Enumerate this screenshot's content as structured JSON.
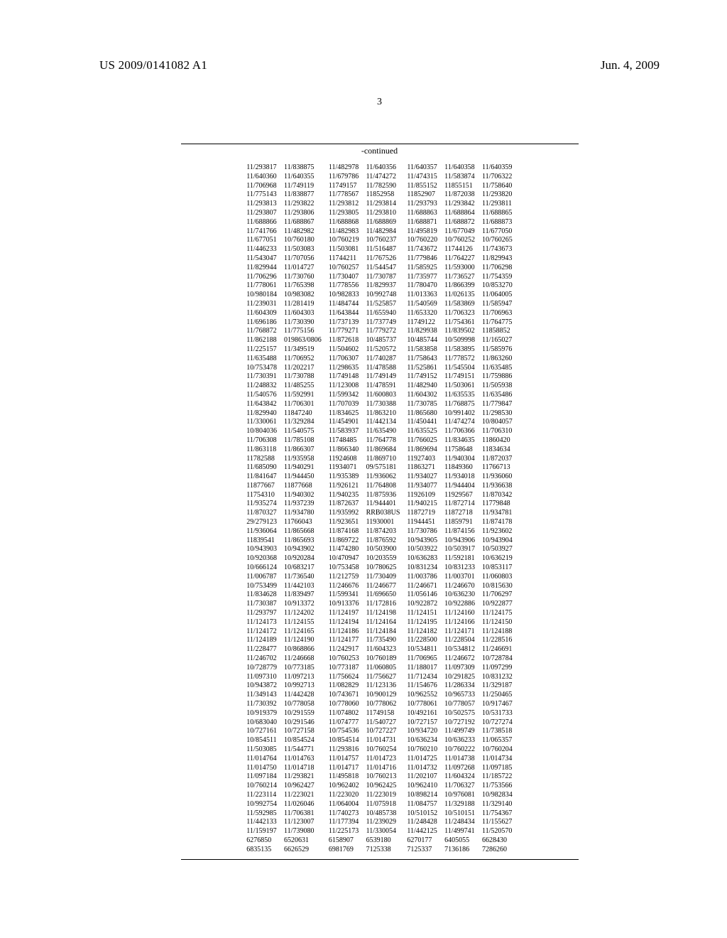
{
  "header": {
    "publication_number": "US 2009/0141082 A1",
    "publication_date": "Jun. 4, 2009"
  },
  "page_number": "3",
  "continued_label": "-continued",
  "table": {
    "columns": 7,
    "rows": [
      [
        "11/293817",
        "11/838875",
        "11/482978",
        "11/640356",
        "11/640357",
        "11/640358",
        "11/640359"
      ],
      [
        "11/640360",
        "11/640355",
        "11/679786",
        "11/474272",
        "11/474315",
        "11/583874",
        "11/706322"
      ],
      [
        "11/706968",
        "11/749119",
        "11749157",
        "11/782590",
        "11/855152",
        "11855151",
        "11/758640"
      ],
      [
        "11/775143",
        "11/838877",
        "11/778567",
        "11852958",
        "11852907",
        "11/872038",
        "11/293820"
      ],
      [
        "11/293813",
        "11/293822",
        "11/293812",
        "11/293814",
        "11/293793",
        "11/293842",
        "11/293811"
      ],
      [
        "11/293807",
        "11/293806",
        "11/293805",
        "11/293810",
        "11/688863",
        "11/688864",
        "11/688865"
      ],
      [
        "11/688866",
        "11/688867",
        "11/688868",
        "11/688869",
        "11/688871",
        "11/688872",
        "11/688873"
      ],
      [
        "11/741766",
        "11/482982",
        "11/482983",
        "11/482984",
        "11/495819",
        "11/677049",
        "11/677050"
      ],
      [
        "11/677051",
        "10/760180",
        "10/760219",
        "10/760237",
        "10/760220",
        "10/760252",
        "10/760265"
      ],
      [
        "11/446233",
        "11/503083",
        "11/503081",
        "11/516487",
        "11/743672",
        "11744126",
        "11/743673"
      ],
      [
        "11/543047",
        "11/707056",
        "11744211",
        "11/767526",
        "11/779846",
        "11/764227",
        "11/829943"
      ],
      [
        "11/829944",
        "11/014727",
        "10/760257",
        "11/544547",
        "11/585925",
        "11/593000",
        "11/706298"
      ],
      [
        "11/706296",
        "11/730760",
        "11/730407",
        "11/730787",
        "11/735977",
        "11/736527",
        "11/754359"
      ],
      [
        "11/778061",
        "11/765398",
        "11/778556",
        "11/829937",
        "11/780470",
        "11/866399",
        "10/853270"
      ],
      [
        "10/980184",
        "10/983082",
        "10/982833",
        "10/992748",
        "11/013363",
        "11/026135",
        "11/064005"
      ],
      [
        "11/239031",
        "11/281419",
        "11/484744",
        "11/525857",
        "11/540569",
        "11/583869",
        "11/585947"
      ],
      [
        "11/604309",
        "11/604303",
        "11/643844",
        "11/655940",
        "11/653320",
        "11/706323",
        "11/706963"
      ],
      [
        "11/696186",
        "11/730390",
        "11/737139",
        "11/737749",
        "11749122",
        "11/754361",
        "11/764775"
      ],
      [
        "11/768872",
        "11/775156",
        "11/779271",
        "11/779272",
        "11/829938",
        "11/839502",
        "11858852"
      ],
      [
        "11/862188",
        "019863/0806",
        "11/872618",
        "10/485737",
        "10/485744",
        "10/509998",
        "11/165027"
      ],
      [
        "11/225157",
        "11/349519",
        "11/504602",
        "11/520572",
        "11/583858",
        "11/583895",
        "11/585976"
      ],
      [
        "11/635488",
        "11/706952",
        "11/706307",
        "11/740287",
        "11/758643",
        "11/778572",
        "11/863260"
      ],
      [
        "10/753478",
        "11/202217",
        "11/298635",
        "11/478588",
        "11/525861",
        "11/545504",
        "11/635485"
      ],
      [
        "11/730391",
        "11/730788",
        "11/749148",
        "11/749149",
        "11/749152",
        "11/749151",
        "11/759886"
      ],
      [
        "11/248832",
        "11/485255",
        "11/123008",
        "11/478591",
        "11/482940",
        "11/503061",
        "11/505938"
      ],
      [
        "11/540576",
        "11/592991",
        "11/599342",
        "11/600803",
        "11/604302",
        "11/635535",
        "11/635486"
      ],
      [
        "11/643842",
        "11/706301",
        "11/707039",
        "11/730388",
        "11/730785",
        "11/768875",
        "11/779847"
      ],
      [
        "11/829940",
        "11847240",
        "11/834625",
        "11/863210",
        "11/865680",
        "10/991402",
        "11/298530"
      ],
      [
        "11/330061",
        "11/329284",
        "11/454901",
        "11/442134",
        "11/450441",
        "11/474274",
        "10/804057"
      ],
      [
        "10/804036",
        "11/540575",
        "11/583937",
        "11/635490",
        "11/635525",
        "11/706366",
        "11/706310"
      ],
      [
        "11/706308",
        "11/785108",
        "11748485",
        "11/764778",
        "11/766025",
        "11/834635",
        "11860420"
      ],
      [
        "11/863118",
        "11/866307",
        "11/866340",
        "11/869684",
        "11/869694",
        "11758648",
        "11834634"
      ],
      [
        "11782588",
        "11/935958",
        "11924608",
        "11/869710",
        "11927403",
        "11/940304",
        "11/872037"
      ],
      [
        "11/685090",
        "11/940291",
        "11934071",
        "09/575181",
        "11863271",
        "11849360",
        "11766713"
      ],
      [
        "11/841647",
        "11/944450",
        "11/935389",
        "11/936062",
        "11/934027",
        "11/934018",
        "11/936060"
      ],
      [
        "11877667",
        "11877668",
        "11/926121",
        "11/764808",
        "11/934077",
        "11/944404",
        "11/936638"
      ],
      [
        "11754310",
        "11/940302",
        "11/940235",
        "11/875936",
        "11926109",
        "11929567",
        "11/870342"
      ],
      [
        "11/935274",
        "11/937239",
        "11/872637",
        "11/944401",
        "11/940215",
        "11/872714",
        "11779848"
      ],
      [
        "11/870327",
        "11/934780",
        "11/935992",
        "RRB038US",
        "11872719",
        "11872718",
        "11/934781"
      ],
      [
        "29/279123",
        "11766043",
        "11/923651",
        "11930001",
        "11944451",
        "11859791",
        "11/874178"
      ],
      [
        "11/936064",
        "11/865668",
        "11/874168",
        "11/874203",
        "11/730786",
        "11/874156",
        "11/923602"
      ],
      [
        "11839541",
        "11/865693",
        "11/869722",
        "11/876592",
        "10/943905",
        "10/943906",
        "10/943904"
      ],
      [
        "10/943903",
        "10/943902",
        "11/474280",
        "10/503900",
        "10/503922",
        "10/503917",
        "10/503927"
      ],
      [
        "10/920368",
        "10/920284",
        "10/470947",
        "10/203559",
        "10/636283",
        "11/592181",
        "10/636219"
      ],
      [
        "10/666124",
        "10/683217",
        "10/753458",
        "10/780625",
        "10/831234",
        "10/831233",
        "10/853117"
      ],
      [
        "11/006787",
        "11/736540",
        "11/212759",
        "11/730409",
        "11/003786",
        "11/003701",
        "11/060803"
      ],
      [
        "10/753499",
        "11/442103",
        "11/246676",
        "11/246677",
        "11/246671",
        "11/246670",
        "10/815630"
      ],
      [
        "11/834628",
        "11/839497",
        "11/599341",
        "11/696650",
        "11/056146",
        "10/636230",
        "11/706297"
      ],
      [
        "11/730387",
        "10/913372",
        "10/913376",
        "11/172816",
        "10/922872",
        "10/922886",
        "10/922877"
      ],
      [
        "11/293797",
        "11/124202",
        "11/124197",
        "11/124198",
        "11/124151",
        "11/124160",
        "11/124175"
      ],
      [
        "11/124173",
        "11/124155",
        "11/124194",
        "11/124164",
        "11/124195",
        "11/124166",
        "11/124150"
      ],
      [
        "11/124172",
        "11/124165",
        "11/124186",
        "11/124184",
        "11/124182",
        "11/124171",
        "11/124188"
      ],
      [
        "11/124189",
        "11/124190",
        "11/124177",
        "11/735490",
        "11/228500",
        "11/228504",
        "11/228516"
      ],
      [
        "11/228477",
        "10/868866",
        "11/242917",
        "11/604323",
        "10/534811",
        "10/534812",
        "11/246691"
      ],
      [
        "11/246702",
        "11/246668",
        "10/760253",
        "10/760189",
        "11/706965",
        "11/246672",
        "10/728784"
      ],
      [
        "10/728779",
        "10/773185",
        "10/773187",
        "11/060805",
        "11/188017",
        "11/097309",
        "11/097299"
      ],
      [
        "11/097310",
        "11/097213",
        "11/756624",
        "11/756627",
        "11/712434",
        "10/291825",
        "10/831232"
      ],
      [
        "10/943872",
        "10/992713",
        "11/082829",
        "11/123136",
        "11/154676",
        "11/286334",
        "11/329187"
      ],
      [
        "11/349143",
        "11/442428",
        "10/743671",
        "10/900129",
        "10/962552",
        "10/965733",
        "11/250465"
      ],
      [
        "11/730392",
        "10/778058",
        "10/778060",
        "10/778062",
        "10/778061",
        "10/778057",
        "10/917467"
      ],
      [
        "10/919379",
        "10/291559",
        "11/074802",
        "11749158",
        "10/492161",
        "10/502575",
        "10/531733"
      ],
      [
        "10/683040",
        "10/291546",
        "11/074777",
        "11/540727",
        "10/727157",
        "10/727192",
        "10/727274"
      ],
      [
        "10/727161",
        "10/727158",
        "10/754536",
        "10/727227",
        "10/934720",
        "11/499749",
        "11/738518"
      ],
      [
        "10/854511",
        "10/854524",
        "10/854514",
        "11/014731",
        "10/636234",
        "10/636233",
        "11/065357"
      ],
      [
        "11/503085",
        "11/544771",
        "11/293816",
        "10/760254",
        "10/760210",
        "10/760222",
        "10/760204"
      ],
      [
        "11/014764",
        "11/014763",
        "11/014757",
        "11/014723",
        "11/014725",
        "11/014738",
        "11/014734"
      ],
      [
        "11/014750",
        "11/014718",
        "11/014717",
        "11/014716",
        "11/014732",
        "11/097268",
        "11/097185"
      ],
      [
        "11/097184",
        "11/293821",
        "11/495818",
        "10/760213",
        "11/202107",
        "11/604324",
        "11/185722"
      ],
      [
        "10/760214",
        "10/962427",
        "10/962402",
        "10/962425",
        "10/962410",
        "11/706327",
        "11/753566"
      ],
      [
        "11/223114",
        "11/223021",
        "11/223020",
        "11/223019",
        "10/898214",
        "10/976081",
        "10/982834"
      ],
      [
        "10/992754",
        "11/026046",
        "11/064004",
        "11/075918",
        "11/084757",
        "11/329188",
        "11/329140"
      ],
      [
        "11/592985",
        "11/706381",
        "11/740273",
        "10/485738",
        "10/510152",
        "10/510151",
        "11/754367"
      ],
      [
        "11/442133",
        "11/123007",
        "11/177394",
        "11/239029",
        "11/248428",
        "11/248434",
        "11/155627"
      ],
      [
        "11/159197",
        "11/739080",
        "11/225173",
        "11/330054",
        "11/442125",
        "11/499741",
        "11/520570"
      ],
      [
        "6276850",
        "6520631",
        "6158907",
        "6539180",
        "6270177",
        "6405055",
        "6628430"
      ],
      [
        "6835135",
        "6626529",
        "6981769",
        "7125338",
        "7125337",
        "7136186",
        "7286260"
      ]
    ]
  }
}
